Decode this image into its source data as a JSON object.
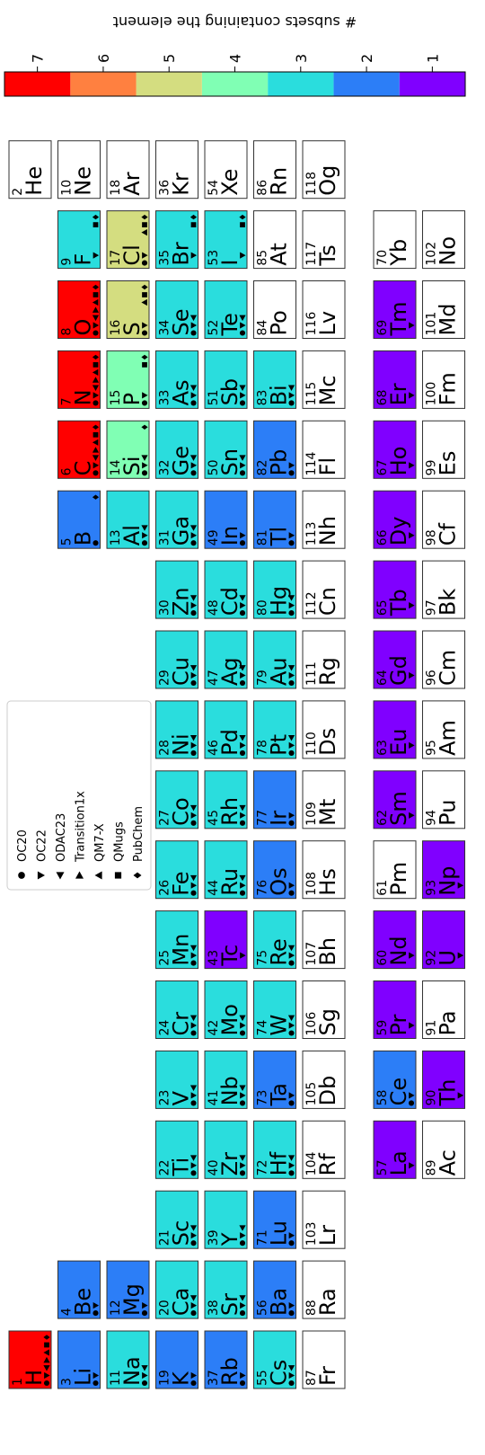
{
  "colorbar": {
    "label": "# subsets containing the element",
    "ylim": [
      0.5,
      7.5
    ],
    "yticks": [
      1,
      2,
      3,
      4,
      5,
      6,
      7
    ],
    "colors": [
      "#8000ff",
      "#2c7ef7",
      "#2adddd",
      "#80ffb4",
      "#d4dd80",
      "#ff8040",
      "#ff0000"
    ]
  },
  "legend": {
    "entries": [
      {
        "name": "OC20",
        "marker": "circle"
      },
      {
        "name": "OC22",
        "marker": "triangle-down"
      },
      {
        "name": "ODAC23",
        "marker": "triangle-left"
      },
      {
        "name": "Transition1x",
        "marker": "triangle-right"
      },
      {
        "name": "QM7-X",
        "marker": "triangle-up"
      },
      {
        "name": "QMugs",
        "marker": "square"
      },
      {
        "name": "PubChem",
        "marker": "diamond"
      }
    ]
  },
  "table": {
    "rows": [
      [
        {
          "number": 1,
          "symbol": "H",
          "count": 7,
          "datasets": [
            0,
            1,
            2,
            3,
            4,
            5,
            6
          ]
        },
        null,
        null,
        null,
        null,
        null,
        null,
        null,
        null,
        null,
        null,
        null,
        null,
        null,
        null,
        null,
        null,
        {
          "number": 2,
          "symbol": "He",
          "count": 0,
          "datasets": []
        }
      ],
      [
        {
          "number": 3,
          "symbol": "Li",
          "count": 2,
          "datasets": [
            0,
            1
          ]
        },
        {
          "number": 4,
          "symbol": "Be",
          "count": 2,
          "datasets": [
            0,
            1
          ]
        },
        null,
        null,
        null,
        null,
        null,
        null,
        null,
        null,
        null,
        null,
        {
          "number": 5,
          "symbol": "B",
          "count": 2,
          "datasets": [
            0,
            6
          ]
        },
        {
          "number": 6,
          "symbol": "C",
          "count": 7,
          "datasets": [
            0,
            1,
            2,
            3,
            4,
            5,
            6
          ]
        },
        {
          "number": 7,
          "symbol": "N",
          "count": 7,
          "datasets": [
            0,
            1,
            2,
            3,
            4,
            5,
            6
          ]
        },
        {
          "number": 8,
          "symbol": "O",
          "count": 7,
          "datasets": [
            0,
            1,
            2,
            3,
            4,
            5,
            6
          ]
        },
        {
          "number": 9,
          "symbol": "F",
          "count": 3,
          "datasets": [
            1,
            5,
            6
          ]
        },
        {
          "number": 10,
          "symbol": "Ne",
          "count": 0,
          "datasets": []
        }
      ],
      [
        {
          "number": 11,
          "symbol": "Na",
          "count": 3,
          "datasets": [
            0,
            1,
            2
          ]
        },
        {
          "number": 12,
          "symbol": "Mg",
          "count": 2,
          "datasets": [
            0,
            1
          ]
        },
        null,
        null,
        null,
        null,
        null,
        null,
        null,
        null,
        null,
        null,
        {
          "number": 13,
          "symbol": "Al",
          "count": 3,
          "datasets": [
            0,
            1,
            2
          ]
        },
        {
          "number": 14,
          "symbol": "Si",
          "count": 4,
          "datasets": [
            0,
            1,
            2,
            6
          ]
        },
        {
          "number": 15,
          "symbol": "P",
          "count": 4,
          "datasets": [
            0,
            1,
            5,
            6
          ]
        },
        {
          "number": 16,
          "symbol": "S",
          "count": 5,
          "datasets": [
            0,
            1,
            4,
            5,
            6
          ]
        },
        {
          "number": 17,
          "symbol": "Cl",
          "count": 5,
          "datasets": [
            0,
            1,
            4,
            5,
            6
          ]
        },
        {
          "number": 18,
          "symbol": "Ar",
          "count": 0,
          "datasets": []
        }
      ],
      [
        {
          "number": 19,
          "symbol": "K",
          "count": 2,
          "datasets": [
            0,
            1
          ]
        },
        {
          "number": 20,
          "symbol": "Ca",
          "count": 3,
          "datasets": [
            0,
            1,
            2
          ]
        },
        {
          "number": 21,
          "symbol": "Sc",
          "count": 3,
          "datasets": [
            0,
            1,
            2
          ]
        },
        {
          "number": 22,
          "symbol": "Ti",
          "count": 3,
          "datasets": [
            0,
            1,
            2
          ]
        },
        {
          "number": 23,
          "symbol": "V",
          "count": 3,
          "datasets": [
            0,
            1,
            2
          ]
        },
        {
          "number": 24,
          "symbol": "Cr",
          "count": 3,
          "datasets": [
            0,
            1,
            2
          ]
        },
        {
          "number": 25,
          "symbol": "Mn",
          "count": 3,
          "datasets": [
            0,
            1,
            2
          ]
        },
        {
          "number": 26,
          "symbol": "Fe",
          "count": 3,
          "datasets": [
            0,
            1,
            2
          ]
        },
        {
          "number": 27,
          "symbol": "Co",
          "count": 3,
          "datasets": [
            0,
            1,
            2
          ]
        },
        {
          "number": 28,
          "symbol": "Ni",
          "count": 3,
          "datasets": [
            0,
            1,
            2
          ]
        },
        {
          "number": 29,
          "symbol": "Cu",
          "count": 3,
          "datasets": [
            0,
            1,
            2
          ]
        },
        {
          "number": 30,
          "symbol": "Zn",
          "count": 3,
          "datasets": [
            0,
            1,
            2
          ]
        },
        {
          "number": 31,
          "symbol": "Ga",
          "count": 3,
          "datasets": [
            0,
            1,
            2
          ]
        },
        {
          "number": 32,
          "symbol": "Ge",
          "count": 3,
          "datasets": [
            0,
            1,
            2
          ]
        },
        {
          "number": 33,
          "symbol": "As",
          "count": 3,
          "datasets": [
            0,
            1,
            2
          ]
        },
        {
          "number": 34,
          "symbol": "Se",
          "count": 3,
          "datasets": [
            0,
            1,
            2
          ]
        },
        {
          "number": 35,
          "symbol": "Br",
          "count": 3,
          "datasets": [
            1,
            5,
            6
          ]
        },
        {
          "number": 36,
          "symbol": "Kr",
          "count": 0,
          "datasets": []
        }
      ],
      [
        {
          "number": 37,
          "symbol": "Rb",
          "count": 2,
          "datasets": [
            0,
            1
          ]
        },
        {
          "number": 38,
          "symbol": "Sr",
          "count": 3,
          "datasets": [
            0,
            1,
            2
          ]
        },
        {
          "number": 39,
          "symbol": "Y",
          "count": 3,
          "datasets": [
            0,
            1,
            2
          ]
        },
        {
          "number": 40,
          "symbol": "Zr",
          "count": 3,
          "datasets": [
            0,
            1,
            2
          ]
        },
        {
          "number": 41,
          "symbol": "Nb",
          "count": 3,
          "datasets": [
            0,
            1,
            2
          ]
        },
        {
          "number": 42,
          "symbol": "Mo",
          "count": 3,
          "datasets": [
            0,
            1,
            2
          ]
        },
        {
          "number": 43,
          "symbol": "Tc",
          "count": 1,
          "datasets": [
            1
          ]
        },
        {
          "number": 44,
          "symbol": "Ru",
          "count": 3,
          "datasets": [
            0,
            1,
            2
          ]
        },
        {
          "number": 45,
          "symbol": "Rh",
          "count": 3,
          "datasets": [
            0,
            1,
            2
          ]
        },
        {
          "number": 46,
          "symbol": "Pd",
          "count": 3,
          "datasets": [
            0,
            1,
            2
          ]
        },
        {
          "number": 47,
          "symbol": "Ag",
          "count": 3,
          "datasets": [
            0,
            1,
            2
          ]
        },
        {
          "number": 48,
          "symbol": "Cd",
          "count": 3,
          "datasets": [
            0,
            1,
            2
          ]
        },
        {
          "number": 49,
          "symbol": "In",
          "count": 2,
          "datasets": [
            0,
            1
          ]
        },
        {
          "number": 50,
          "symbol": "Sn",
          "count": 3,
          "datasets": [
            0,
            1,
            2
          ]
        },
        {
          "number": 51,
          "symbol": "Sb",
          "count": 3,
          "datasets": [
            0,
            1,
            2
          ]
        },
        {
          "number": 52,
          "symbol": "Te",
          "count": 3,
          "datasets": [
            0,
            1,
            2
          ]
        },
        {
          "number": 53,
          "symbol": "I",
          "count": 3,
          "datasets": [
            1,
            5,
            6
          ]
        },
        {
          "number": 54,
          "symbol": "Xe",
          "count": 0,
          "datasets": []
        }
      ],
      [
        {
          "number": 55,
          "symbol": "Cs",
          "count": 3,
          "datasets": [
            0,
            1,
            2
          ]
        },
        {
          "number": 56,
          "symbol": "Ba",
          "count": 2,
          "datasets": [
            0,
            1
          ]
        },
        {
          "number": 71,
          "symbol": "Lu",
          "count": 2,
          "datasets": [
            0,
            1
          ]
        },
        {
          "number": 72,
          "symbol": "Hf",
          "count": 3,
          "datasets": [
            0,
            1,
            2
          ]
        },
        {
          "number": 73,
          "symbol": "Ta",
          "count": 2,
          "datasets": [
            0,
            1
          ]
        },
        {
          "number": 74,
          "symbol": "W",
          "count": 3,
          "datasets": [
            0,
            1,
            2
          ]
        },
        {
          "number": 75,
          "symbol": "Re",
          "count": 3,
          "datasets": [
            0,
            1,
            2
          ]
        },
        {
          "number": 76,
          "symbol": "Os",
          "count": 2,
          "datasets": [
            0,
            1
          ]
        },
        {
          "number": 77,
          "symbol": "Ir",
          "count": 2,
          "datasets": [
            0,
            1
          ]
        },
        {
          "number": 78,
          "symbol": "Pt",
          "count": 3,
          "datasets": [
            0,
            1,
            2
          ]
        },
        {
          "number": 79,
          "symbol": "Au",
          "count": 3,
          "datasets": [
            0,
            1,
            2
          ]
        },
        {
          "number": 80,
          "symbol": "Hg",
          "count": 3,
          "datasets": [
            0,
            1,
            2
          ]
        },
        {
          "number": 81,
          "symbol": "Tl",
          "count": 2,
          "datasets": [
            0,
            1
          ]
        },
        {
          "number": 82,
          "symbol": "Pb",
          "count": 2,
          "datasets": [
            0,
            1
          ]
        },
        {
          "number": 83,
          "symbol": "Bi",
          "count": 3,
          "datasets": [
            0,
            1,
            2
          ]
        },
        {
          "number": 84,
          "symbol": "Po",
          "count": 0,
          "datasets": []
        },
        {
          "number": 85,
          "symbol": "At",
          "count": 0,
          "datasets": []
        },
        {
          "number": 86,
          "symbol": "Rn",
          "count": 0,
          "datasets": []
        }
      ],
      [
        {
          "number": 87,
          "symbol": "Fr",
          "count": 0,
          "datasets": []
        },
        {
          "number": 88,
          "symbol": "Ra",
          "count": 0,
          "datasets": []
        },
        {
          "number": 103,
          "symbol": "Lr",
          "count": 0,
          "datasets": []
        },
        {
          "number": 104,
          "symbol": "Rf",
          "count": 0,
          "datasets": []
        },
        {
          "number": 105,
          "symbol": "Db",
          "count": 0,
          "datasets": []
        },
        {
          "number": 106,
          "symbol": "Sg",
          "count": 0,
          "datasets": []
        },
        {
          "number": 107,
          "symbol": "Bh",
          "count": 0,
          "datasets": []
        },
        {
          "number": 108,
          "symbol": "Hs",
          "count": 0,
          "datasets": []
        },
        {
          "number": 109,
          "symbol": "Mt",
          "count": 0,
          "datasets": []
        },
        {
          "number": 110,
          "symbol": "Ds",
          "count": 0,
          "datasets": []
        },
        {
          "number": 111,
          "symbol": "Rg",
          "count": 0,
          "datasets": []
        },
        {
          "number": 112,
          "symbol": "Cn",
          "count": 0,
          "datasets": []
        },
        {
          "number": 113,
          "symbol": "Nh",
          "count": 0,
          "datasets": []
        },
        {
          "number": 114,
          "symbol": "Fl",
          "count": 0,
          "datasets": []
        },
        {
          "number": 115,
          "symbol": "Mc",
          "count": 0,
          "datasets": []
        },
        {
          "number": 116,
          "symbol": "Lv",
          "count": 0,
          "datasets": []
        },
        {
          "number": 117,
          "symbol": "Ts",
          "count": 0,
          "datasets": []
        },
        {
          "number": 118,
          "symbol": "Og",
          "count": 0,
          "datasets": []
        }
      ],
      [
        null,
        null,
        null,
        {
          "number": 57,
          "symbol": "La",
          "count": 1,
          "datasets": [
            1
          ]
        },
        {
          "number": 58,
          "symbol": "Ce",
          "count": 2,
          "datasets": [
            0,
            1
          ]
        },
        {
          "number": 59,
          "symbol": "Pr",
          "count": 1,
          "datasets": [
            1
          ]
        },
        {
          "number": 60,
          "symbol": "Nd",
          "count": 1,
          "datasets": [
            1
          ]
        },
        {
          "number": 61,
          "symbol": "Pm",
          "count": 0,
          "datasets": []
        },
        {
          "number": 62,
          "symbol": "Sm",
          "count": 1,
          "datasets": [
            1
          ]
        },
        {
          "number": 63,
          "symbol": "Eu",
          "count": 1,
          "datasets": [
            1
          ]
        },
        {
          "number": 64,
          "symbol": "Gd",
          "count": 1,
          "datasets": [
            1
          ]
        },
        {
          "number": 65,
          "symbol": "Tb",
          "count": 1,
          "datasets": [
            1
          ]
        },
        {
          "number": 66,
          "symbol": "Dy",
          "count": 1,
          "datasets": [
            1
          ]
        },
        {
          "number": 67,
          "symbol": "Ho",
          "count": 1,
          "datasets": [
            1
          ]
        },
        {
          "number": 68,
          "symbol": "Er",
          "count": 1,
          "datasets": [
            1
          ]
        },
        {
          "number": 69,
          "symbol": "Tm",
          "count": 1,
          "datasets": [
            1
          ]
        },
        {
          "number": 70,
          "symbol": "Yb",
          "count": 0,
          "datasets": []
        },
        null
      ],
      [
        null,
        null,
        null,
        {
          "number": 89,
          "symbol": "Ac",
          "count": 0,
          "datasets": []
        },
        {
          "number": 90,
          "symbol": "Th",
          "count": 1,
          "datasets": [
            1
          ]
        },
        {
          "number": 91,
          "symbol": "Pa",
          "count": 0,
          "datasets": []
        },
        {
          "number": 92,
          "symbol": "U",
          "count": 1,
          "datasets": [
            1
          ]
        },
        {
          "number": 93,
          "symbol": "Np",
          "count": 1,
          "datasets": [
            1
          ]
        },
        {
          "number": 94,
          "symbol": "Pu",
          "count": 0,
          "datasets": []
        },
        {
          "number": 95,
          "symbol": "Am",
          "count": 0,
          "datasets": []
        },
        {
          "number": 96,
          "symbol": "Cm",
          "count": 0,
          "datasets": []
        },
        {
          "number": 97,
          "symbol": "Bk",
          "count": 0,
          "datasets": []
        },
        {
          "number": 98,
          "symbol": "Cf",
          "count": 0,
          "datasets": []
        },
        {
          "number": 99,
          "symbol": "Es",
          "count": 0,
          "datasets": []
        },
        {
          "number": 100,
          "symbol": "Fm",
          "count": 0,
          "datasets": []
        },
        {
          "number": 101,
          "symbol": "Md",
          "count": 0,
          "datasets": []
        },
        {
          "number": 102,
          "symbol": "No",
          "count": 0,
          "datasets": []
        },
        null
      ]
    ]
  }
}
